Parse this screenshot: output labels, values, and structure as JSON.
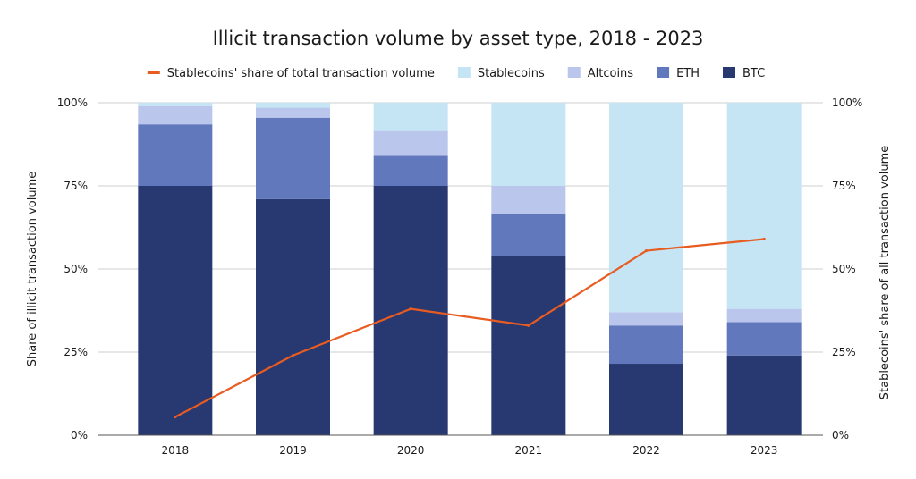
{
  "chart_data": {
    "type": "bar",
    "stacked": true,
    "title": "Illicit transaction volume by asset type, 2018 - 2023",
    "categories": [
      "2018",
      "2019",
      "2020",
      "2021",
      "2022",
      "2023"
    ],
    "series": [
      {
        "name": "BTC",
        "color": "#283870",
        "values": [
          75,
          71,
          75,
          54,
          21.5,
          24
        ]
      },
      {
        "name": "ETH",
        "color": "#6178bd",
        "values": [
          18.5,
          24.5,
          9,
          12.5,
          11.5,
          10
        ]
      },
      {
        "name": "Altcoins",
        "color": "#bac6ec",
        "values": [
          5.5,
          3,
          7.5,
          8.5,
          4,
          4
        ]
      },
      {
        "name": "Stablecoins",
        "color": "#c5e5f5",
        "values": [
          1,
          1.5,
          8.5,
          25,
          63,
          62
        ]
      }
    ],
    "line_series": {
      "name": "Stablecoins' share of total transaction volume",
      "color": "#e85c22",
      "axis": "right",
      "values": [
        5.5,
        24,
        38,
        33,
        55.5,
        59
      ]
    },
    "ylabel": "Share of illicit transaction volume",
    "ylabel_right": "Stablecoins' share of all transaction volume",
    "ylim": [
      0,
      100
    ],
    "ylim_right": [
      0,
      100
    ],
    "yticks": [
      "0%",
      "25%",
      "50%",
      "75%",
      "100%"
    ],
    "yticks_right": [
      "0%",
      "25%",
      "50%",
      "75%",
      "100%"
    ],
    "grid": true,
    "legend_position": "top",
    "legend_order": [
      "Stablecoins' share of total transaction volume",
      "Stablecoins",
      "Altcoins",
      "ETH",
      "BTC"
    ]
  }
}
